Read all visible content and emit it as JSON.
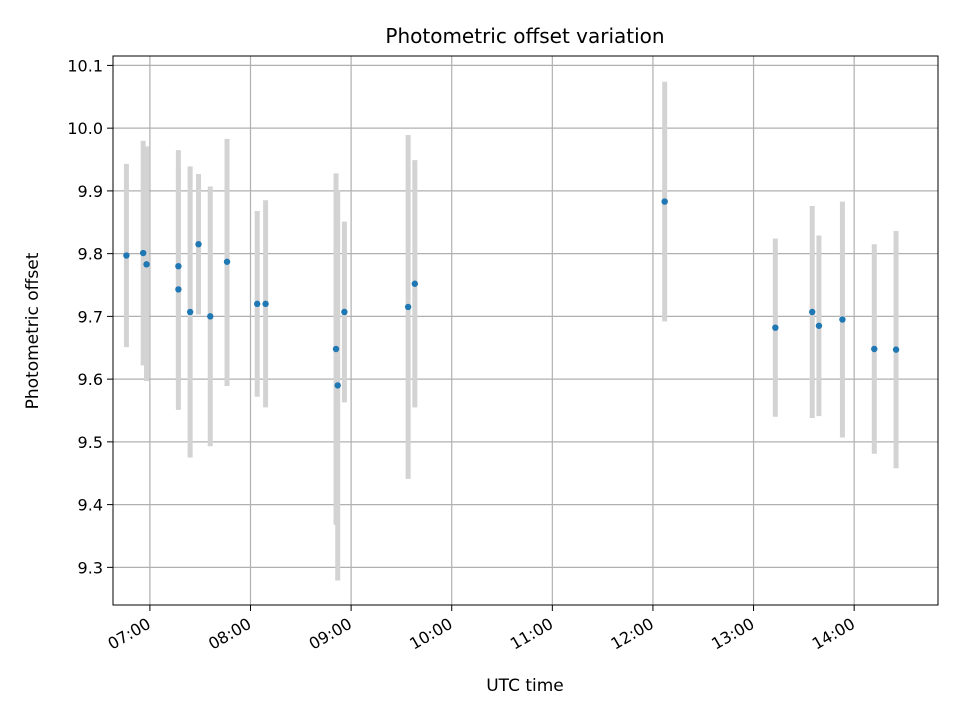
{
  "chart_data": {
    "type": "scatter",
    "title": "Photometric offset variation",
    "xlabel": "UTC time",
    "ylabel": "Photometric offset",
    "xlim": [
      "06:38",
      "14:50"
    ],
    "ylim": [
      9.24,
      10.115
    ],
    "x_ticks": [
      "07:00",
      "08:00",
      "09:00",
      "10:00",
      "11:00",
      "12:00",
      "13:00",
      "14:00"
    ],
    "y_ticks": [
      "9.3",
      "9.4",
      "9.5",
      "9.6",
      "9.7",
      "9.8",
      "9.9",
      "10.0",
      "10.1"
    ],
    "grid": true,
    "marker_color": "#1f77b4",
    "errorbar_color": "#d3d3d3",
    "points": [
      {
        "t": "06:46",
        "y": 9.797,
        "lo": 9.651,
        "hi": 9.943
      },
      {
        "t": "06:56",
        "y": 9.801,
        "lo": 9.622,
        "hi": 9.98
      },
      {
        "t": "06:58",
        "y": 9.783,
        "lo": 9.597,
        "hi": 9.971
      },
      {
        "t": "07:17",
        "y": 9.78,
        "lo": 9.595,
        "hi": 9.965
      },
      {
        "t": "07:17",
        "y": 9.743,
        "lo": 9.551,
        "hi": 9.935
      },
      {
        "t": "07:24",
        "y": 9.707,
        "lo": 9.475,
        "hi": 9.939
      },
      {
        "t": "07:29",
        "y": 9.815,
        "lo": 9.703,
        "hi": 9.927
      },
      {
        "t": "07:36",
        "y": 9.7,
        "lo": 9.493,
        "hi": 9.907
      },
      {
        "t": "07:46",
        "y": 9.787,
        "lo": 9.589,
        "hi": 9.983
      },
      {
        "t": "08:04",
        "y": 9.72,
        "lo": 9.572,
        "hi": 9.868
      },
      {
        "t": "08:09",
        "y": 9.72,
        "lo": 9.555,
        "hi": 9.885
      },
      {
        "t": "08:51",
        "y": 9.648,
        "lo": 9.368,
        "hi": 9.928
      },
      {
        "t": "08:52",
        "y": 9.59,
        "lo": 9.279,
        "hi": 9.901
      },
      {
        "t": "08:56",
        "y": 9.707,
        "lo": 9.563,
        "hi": 9.851
      },
      {
        "t": "09:34",
        "y": 9.715,
        "lo": 9.441,
        "hi": 9.989
      },
      {
        "t": "09:38",
        "y": 9.752,
        "lo": 9.555,
        "hi": 9.949
      },
      {
        "t": "12:07",
        "y": 9.883,
        "lo": 9.692,
        "hi": 10.074
      },
      {
        "t": "13:13",
        "y": 9.682,
        "lo": 9.54,
        "hi": 9.824
      },
      {
        "t": "13:35",
        "y": 9.707,
        "lo": 9.538,
        "hi": 9.876
      },
      {
        "t": "13:39",
        "y": 9.685,
        "lo": 9.541,
        "hi": 9.829
      },
      {
        "t": "13:53",
        "y": 9.695,
        "lo": 9.507,
        "hi": 9.883
      },
      {
        "t": "14:12",
        "y": 9.648,
        "lo": 9.481,
        "hi": 9.815
      },
      {
        "t": "14:25",
        "y": 9.647,
        "lo": 9.458,
        "hi": 9.836
      }
    ]
  }
}
